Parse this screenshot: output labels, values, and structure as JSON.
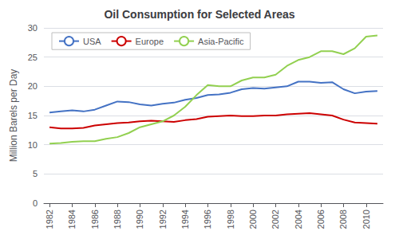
{
  "chart_data": {
    "type": "line",
    "title": "Oil Consumption for Selected Areas",
    "ylabel": "Million Barels per Day",
    "x": [
      1982,
      1983,
      1984,
      1985,
      1986,
      1987,
      1988,
      1989,
      1990,
      1991,
      1992,
      1993,
      1994,
      1995,
      1996,
      1997,
      1998,
      1999,
      2000,
      2001,
      2002,
      2003,
      2004,
      2005,
      2006,
      2007,
      2008,
      2009,
      2010,
      2011
    ],
    "series": [
      {
        "name": "USA",
        "color": "#4472C4",
        "values": [
          15.5,
          15.7,
          15.9,
          15.7,
          16.0,
          16.7,
          17.4,
          17.3,
          16.9,
          16.7,
          17.0,
          17.2,
          17.7,
          18.0,
          18.5,
          18.6,
          18.9,
          19.5,
          19.7,
          19.6,
          19.8,
          20.0,
          20.8,
          20.8,
          20.6,
          20.7,
          19.5,
          18.8,
          19.1,
          19.2
        ]
      },
      {
        "name": "Europe",
        "color": "#CC0000",
        "values": [
          13.0,
          12.8,
          12.8,
          12.9,
          13.3,
          13.5,
          13.7,
          13.8,
          14.0,
          14.1,
          14.0,
          13.9,
          14.2,
          14.4,
          14.8,
          14.9,
          15.0,
          14.9,
          14.9,
          15.0,
          15.0,
          15.2,
          15.3,
          15.4,
          15.2,
          15.0,
          14.3,
          13.8,
          13.7,
          13.6
        ]
      },
      {
        "name": "Asia-Pacific",
        "color": "#92D050",
        "values": [
          10.2,
          10.3,
          10.5,
          10.6,
          10.6,
          11.0,
          11.3,
          12.0,
          13.0,
          13.5,
          14.0,
          15.0,
          16.5,
          18.5,
          20.2,
          20.0,
          20.0,
          21.0,
          21.5,
          21.5,
          22.0,
          23.5,
          24.5,
          25.0,
          26.0,
          26.0,
          25.5,
          26.5,
          28.5,
          28.7
        ]
      }
    ],
    "xlim": [
      1981.5,
      2011.5
    ],
    "xticks": [
      1982,
      1984,
      1986,
      1988,
      1990,
      1992,
      1994,
      1996,
      1998,
      2000,
      2002,
      2004,
      2006,
      2008,
      2010
    ],
    "ylim": [
      0,
      30
    ],
    "yticks": [
      0,
      5,
      10,
      15,
      20,
      25,
      30
    ],
    "grid": true,
    "legend": "upper left"
  }
}
